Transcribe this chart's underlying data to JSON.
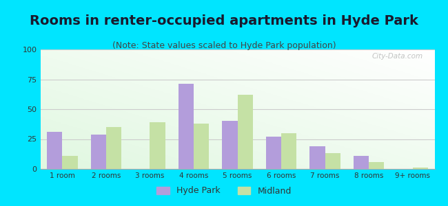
{
  "title": "Rooms in renter-occupied apartments in Hyde Park",
  "subtitle": "(Note: State values scaled to Hyde Park population)",
  "categories": [
    "1 room",
    "2 rooms",
    "3 rooms",
    "4 rooms",
    "5 rooms",
    "6 rooms",
    "7 rooms",
    "8 rooms",
    "9+ rooms"
  ],
  "hyde_park": [
    31,
    29,
    0,
    71,
    40,
    27,
    19,
    11,
    0
  ],
  "midland": [
    11,
    35,
    39,
    38,
    62,
    30,
    13,
    6,
    1
  ],
  "hyde_park_color": "#b39ddb",
  "midland_color": "#c5e1a5",
  "background_outer": "#00e5ff",
  "ylim": [
    0,
    100
  ],
  "yticks": [
    0,
    25,
    50,
    75,
    100
  ],
  "bar_width": 0.35,
  "title_fontsize": 14,
  "subtitle_fontsize": 9,
  "legend_hyde_park": "Hyde Park",
  "legend_midland": "Midland",
  "title_color": "#1a1a2e",
  "subtitle_color": "#444444",
  "tick_color": "#333333"
}
